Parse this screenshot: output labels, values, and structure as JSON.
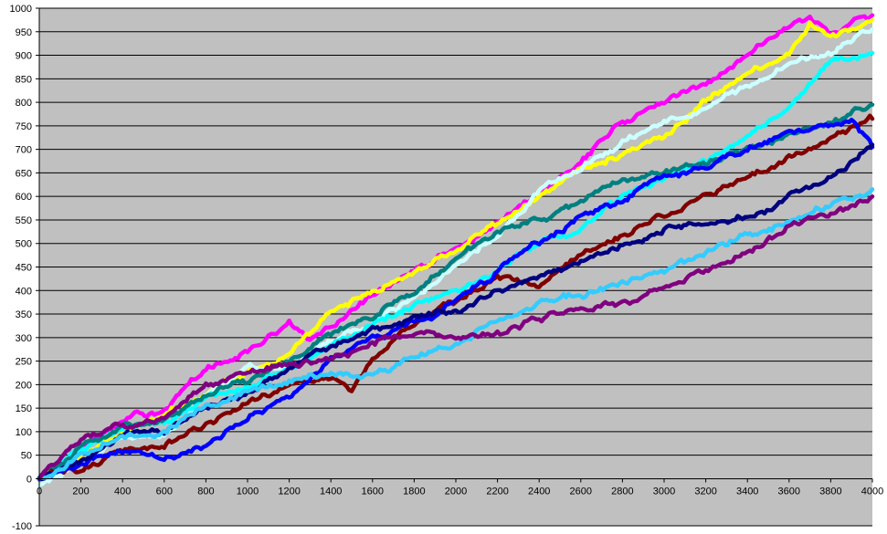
{
  "chart_data": {
    "type": "line",
    "title": "",
    "xlabel": "",
    "ylabel": "",
    "xlim": [
      0,
      4000
    ],
    "ylim": [
      -100,
      1000
    ],
    "x_ticks": [
      0,
      200,
      400,
      600,
      800,
      1000,
      1200,
      1400,
      1600,
      1800,
      2000,
      2200,
      2400,
      2600,
      2800,
      3000,
      3200,
      3400,
      3600,
      3800,
      4000
    ],
    "y_ticks": [
      -100,
      0,
      50,
      100,
      150,
      200,
      250,
      300,
      350,
      400,
      450,
      500,
      550,
      600,
      650,
      700,
      750,
      800,
      850,
      900,
      950,
      1000
    ],
    "grid": "horizontal",
    "legend": "none",
    "plot_background": "#C0C0C0",
    "series": [
      {
        "color": "#FF00FF",
        "points": [
          [
            0,
            0
          ],
          [
            200,
            60
          ],
          [
            400,
            120
          ],
          [
            600,
            150
          ],
          [
            800,
            230
          ],
          [
            1000,
            270
          ],
          [
            1100,
            300
          ],
          [
            1200,
            330
          ],
          [
            1300,
            290
          ],
          [
            1400,
            320
          ],
          [
            1600,
            390
          ],
          [
            1800,
            440
          ],
          [
            2000,
            490
          ],
          [
            2200,
            540
          ],
          [
            2400,
            600
          ],
          [
            2600,
            680
          ],
          [
            2800,
            760
          ],
          [
            3000,
            800
          ],
          [
            3200,
            840
          ],
          [
            3400,
            900
          ],
          [
            3600,
            970
          ],
          [
            3700,
            975
          ],
          [
            3800,
            950
          ],
          [
            3900,
            970
          ],
          [
            4000,
            985
          ]
        ]
      },
      {
        "color": "#FFFF00",
        "points": [
          [
            0,
            0
          ],
          [
            200,
            50
          ],
          [
            400,
            100
          ],
          [
            600,
            140
          ],
          [
            800,
            180
          ],
          [
            1000,
            230
          ],
          [
            1200,
            270
          ],
          [
            1400,
            360
          ],
          [
            1600,
            400
          ],
          [
            1800,
            440
          ],
          [
            2000,
            490
          ],
          [
            2200,
            540
          ],
          [
            2400,
            600
          ],
          [
            2600,
            660
          ],
          [
            2800,
            690
          ],
          [
            3000,
            730
          ],
          [
            3200,
            800
          ],
          [
            3400,
            860
          ],
          [
            3600,
            900
          ],
          [
            3700,
            970
          ],
          [
            3800,
            940
          ],
          [
            4000,
            975
          ]
        ]
      },
      {
        "color": "#CCFFFF",
        "points": [
          [
            0,
            -10
          ],
          [
            200,
            30
          ],
          [
            400,
            90
          ],
          [
            600,
            90
          ],
          [
            800,
            170
          ],
          [
            1000,
            230
          ],
          [
            1200,
            240
          ],
          [
            1400,
            290
          ],
          [
            1600,
            330
          ],
          [
            1800,
            390
          ],
          [
            2000,
            450
          ],
          [
            2200,
            520
          ],
          [
            2400,
            610
          ],
          [
            2600,
            660
          ],
          [
            2800,
            720
          ],
          [
            3000,
            760
          ],
          [
            3200,
            790
          ],
          [
            3400,
            840
          ],
          [
            3600,
            880
          ],
          [
            3800,
            910
          ],
          [
            4000,
            955
          ]
        ]
      },
      {
        "color": "#00FFFF",
        "points": [
          [
            0,
            0
          ],
          [
            200,
            60
          ],
          [
            400,
            100
          ],
          [
            600,
            120
          ],
          [
            800,
            170
          ],
          [
            1000,
            200
          ],
          [
            1200,
            230
          ],
          [
            1400,
            280
          ],
          [
            1600,
            330
          ],
          [
            1800,
            370
          ],
          [
            2000,
            400
          ],
          [
            2200,
            450
          ],
          [
            2400,
            500
          ],
          [
            2600,
            540
          ],
          [
            2800,
            600
          ],
          [
            3000,
            640
          ],
          [
            3200,
            680
          ],
          [
            3400,
            730
          ],
          [
            3600,
            790
          ],
          [
            3800,
            890
          ],
          [
            4000,
            905
          ]
        ]
      },
      {
        "color": "#008080",
        "points": [
          [
            0,
            0
          ],
          [
            200,
            70
          ],
          [
            400,
            110
          ],
          [
            600,
            130
          ],
          [
            800,
            180
          ],
          [
            1000,
            210
          ],
          [
            1200,
            250
          ],
          [
            1400,
            310
          ],
          [
            1600,
            350
          ],
          [
            1800,
            400
          ],
          [
            2000,
            470
          ],
          [
            2200,
            520
          ],
          [
            2400,
            550
          ],
          [
            2600,
            590
          ],
          [
            2800,
            630
          ],
          [
            3000,
            650
          ],
          [
            3200,
            670
          ],
          [
            3400,
            700
          ],
          [
            3600,
            730
          ],
          [
            3800,
            750
          ],
          [
            4000,
            795
          ]
        ]
      },
      {
        "color": "#800000",
        "points": [
          [
            0,
            0
          ],
          [
            200,
            20
          ],
          [
            400,
            60
          ],
          [
            600,
            70
          ],
          [
            800,
            110
          ],
          [
            1000,
            160
          ],
          [
            1200,
            200
          ],
          [
            1400,
            220
          ],
          [
            1500,
            190
          ],
          [
            1600,
            250
          ],
          [
            1800,
            330
          ],
          [
            2000,
            380
          ],
          [
            2200,
            430
          ],
          [
            2400,
            410
          ],
          [
            2600,
            470
          ],
          [
            2800,
            520
          ],
          [
            3000,
            560
          ],
          [
            3200,
            610
          ],
          [
            3400,
            640
          ],
          [
            3600,
            680
          ],
          [
            3800,
            730
          ],
          [
            4000,
            765
          ]
        ]
      },
      {
        "color": "#0000FF",
        "points": [
          [
            0,
            0
          ],
          [
            200,
            30
          ],
          [
            400,
            60
          ],
          [
            600,
            40
          ],
          [
            800,
            70
          ],
          [
            1000,
            130
          ],
          [
            1200,
            180
          ],
          [
            1400,
            250
          ],
          [
            1600,
            300
          ],
          [
            1800,
            330
          ],
          [
            2000,
            380
          ],
          [
            2200,
            440
          ],
          [
            2400,
            500
          ],
          [
            2600,
            550
          ],
          [
            2800,
            590
          ],
          [
            3000,
            640
          ],
          [
            3200,
            660
          ],
          [
            3400,
            700
          ],
          [
            3600,
            740
          ],
          [
            3800,
            750
          ],
          [
            3900,
            760
          ],
          [
            4000,
            705
          ]
        ]
      },
      {
        "color": "#000080",
        "points": [
          [
            0,
            0
          ],
          [
            200,
            40
          ],
          [
            400,
            90
          ],
          [
            600,
            110
          ],
          [
            800,
            150
          ],
          [
            1000,
            180
          ],
          [
            1200,
            240
          ],
          [
            1400,
            280
          ],
          [
            1600,
            320
          ],
          [
            1800,
            340
          ],
          [
            2000,
            350
          ],
          [
            2200,
            400
          ],
          [
            2400,
            430
          ],
          [
            2600,
            460
          ],
          [
            2800,
            500
          ],
          [
            3000,
            530
          ],
          [
            3200,
            540
          ],
          [
            3400,
            560
          ],
          [
            3600,
            600
          ],
          [
            3800,
            640
          ],
          [
            4000,
            710
          ]
        ]
      },
      {
        "color": "#33CCFF",
        "points": [
          [
            0,
            0
          ],
          [
            200,
            50
          ],
          [
            400,
            90
          ],
          [
            600,
            100
          ],
          [
            800,
            150
          ],
          [
            1000,
            190
          ],
          [
            1200,
            210
          ],
          [
            1400,
            230
          ],
          [
            1600,
            220
          ],
          [
            1800,
            260
          ],
          [
            2000,
            290
          ],
          [
            2200,
            340
          ],
          [
            2400,
            370
          ],
          [
            2600,
            390
          ],
          [
            2800,
            420
          ],
          [
            3000,
            440
          ],
          [
            3200,
            480
          ],
          [
            3400,
            520
          ],
          [
            3600,
            550
          ],
          [
            3800,
            580
          ],
          [
            4000,
            615
          ]
        ]
      },
      {
        "color": "#800080",
        "points": [
          [
            0,
            0
          ],
          [
            200,
            90
          ],
          [
            400,
            110
          ],
          [
            600,
            130
          ],
          [
            800,
            200
          ],
          [
            1000,
            220
          ],
          [
            1200,
            250
          ],
          [
            1400,
            260
          ],
          [
            1600,
            290
          ],
          [
            1800,
            310
          ],
          [
            2000,
            300
          ],
          [
            2200,
            310
          ],
          [
            2400,
            340
          ],
          [
            2600,
            360
          ],
          [
            2800,
            380
          ],
          [
            3000,
            410
          ],
          [
            3200,
            440
          ],
          [
            3400,
            480
          ],
          [
            3600,
            540
          ],
          [
            3800,
            560
          ],
          [
            4000,
            600
          ]
        ]
      }
    ]
  }
}
